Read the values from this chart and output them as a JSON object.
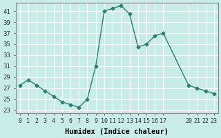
{
  "x": [
    0,
    1,
    2,
    3,
    4,
    5,
    6,
    7,
    8,
    9,
    10,
    11,
    12,
    13,
    14,
    15,
    16,
    17,
    20,
    21,
    22,
    23
  ],
  "y": [
    27.5,
    28.5,
    27.5,
    26.5,
    25.5,
    24.5,
    24.0,
    23.5,
    25.0,
    31.0,
    41.0,
    41.5,
    42.0,
    40.5,
    34.5,
    35.0,
    36.5,
    37.0,
    27.5,
    27.0,
    26.5,
    26.0
  ],
  "line_color": "#2e7d6e",
  "marker_color": "#2e7d6e",
  "bg_color": "#c8ece8",
  "grid_color": "#ffffff",
  "xlabel": "Humidex (Indice chaleur)",
  "ylim_low": 22.5,
  "ylim_high": 42.5,
  "xlim_low": -0.5,
  "xlim_high": 23.5,
  "yticks": [
    23,
    25,
    27,
    29,
    31,
    33,
    35,
    37,
    39,
    41
  ],
  "xtick_positions": [
    0,
    1,
    2,
    3,
    4,
    5,
    6,
    7,
    8,
    9,
    10,
    11,
    12,
    13,
    14,
    15,
    16,
    17,
    20,
    21,
    22,
    23
  ],
  "xtick_labels": [
    "0",
    "1",
    "2",
    "3",
    "4",
    "5",
    "6",
    "7",
    "8",
    "9",
    "10",
    "11",
    "12",
    "13",
    "14",
    "15",
    "16",
    "17",
    "20",
    "21",
    "22",
    "23"
  ]
}
